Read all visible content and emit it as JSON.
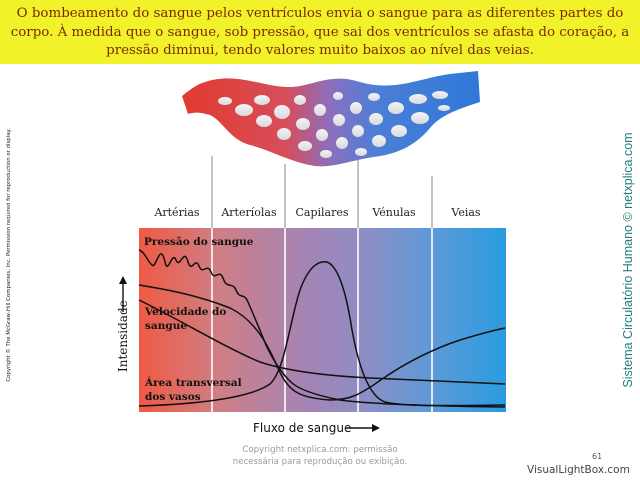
{
  "banner": {
    "text": "O bombeamento do sangue pelos ventrículos envia o sangue para as diferentes partes do corpo. À medida que o sangue, sob pressão, que sai dos ventrículos se afasta do coração, a pressão diminui, tendo valores muito baixos ao nível das veias."
  },
  "side_left_text": "Copyright © The McGraw-Hill Companies, Inc. Permission required for reproduction or display.",
  "side_right_text": "Sistema Circulatório Humano © netxplica.com",
  "diagram": {
    "vessel_labels": [
      "Artérias",
      "Arteríolas",
      "Capilares",
      "Vénulas",
      "Veias"
    ],
    "curve_labels": {
      "pressure": "Pressão do sangue",
      "velocity_line1": "Velocidade do",
      "velocity_line2": "sangue",
      "area_line1": "Área transversal",
      "area_line2": "dos vasos"
    },
    "y_axis_label": "Intensidade",
    "x_axis_label": "Fluxo de sangue",
    "colors": {
      "arterial": "#e8453c",
      "capillary": "#a07ab8",
      "venous": "#2f9be0"
    }
  },
  "watermark": {
    "line1": "Copyright netxplica.com: permissão",
    "line2": "necessária para reprodução ou exibição."
  },
  "page_number": "61",
  "footer_brand": "VisualLightBox.com"
}
